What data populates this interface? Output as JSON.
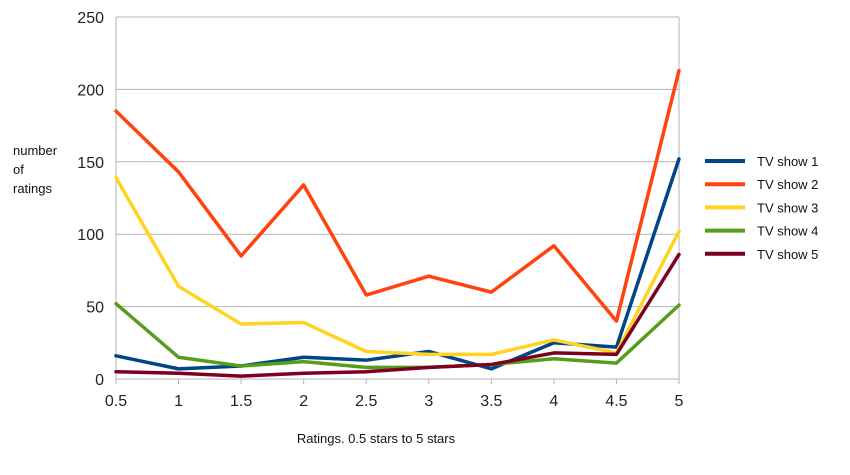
{
  "chart_data": {
    "type": "line",
    "title": "",
    "xlabel": "Ratings. 0.5 stars to 5 stars",
    "ylabel": [
      "number",
      "of",
      "ratings"
    ],
    "x": [
      0.5,
      1,
      1.5,
      2,
      2.5,
      3,
      3.5,
      4,
      4.5,
      5
    ],
    "xticks": [
      "0.5",
      "1",
      "1.5",
      "2",
      "2.5",
      "3",
      "3.5",
      "4",
      "4.5",
      "5"
    ],
    "yticks": [
      "0",
      "50",
      "100",
      "150",
      "200",
      "250"
    ],
    "ylim": [
      0,
      250
    ],
    "grid": "horizontal",
    "legend_position": "right",
    "series": [
      {
        "name": "TV show 1",
        "color": "#004586",
        "values": [
          16,
          7,
          9,
          15,
          13,
          19,
          7,
          25,
          22,
          152
        ]
      },
      {
        "name": "TV show 2",
        "color": "#ff420e",
        "values": [
          185,
          143,
          85,
          134,
          58,
          71,
          60,
          92,
          40,
          213
        ]
      },
      {
        "name": "TV show 3",
        "color": "#ffd320",
        "values": [
          139,
          64,
          38,
          39,
          19,
          17,
          17,
          27,
          18,
          102
        ]
      },
      {
        "name": "TV show 4",
        "color": "#579d1c",
        "values": [
          52,
          15,
          9,
          12,
          8,
          8,
          10,
          14,
          11,
          51
        ]
      },
      {
        "name": "TV show 5",
        "color": "#7e0021",
        "values": [
          5,
          4,
          2,
          4,
          5,
          8,
          10,
          18,
          17,
          86
        ]
      }
    ]
  }
}
